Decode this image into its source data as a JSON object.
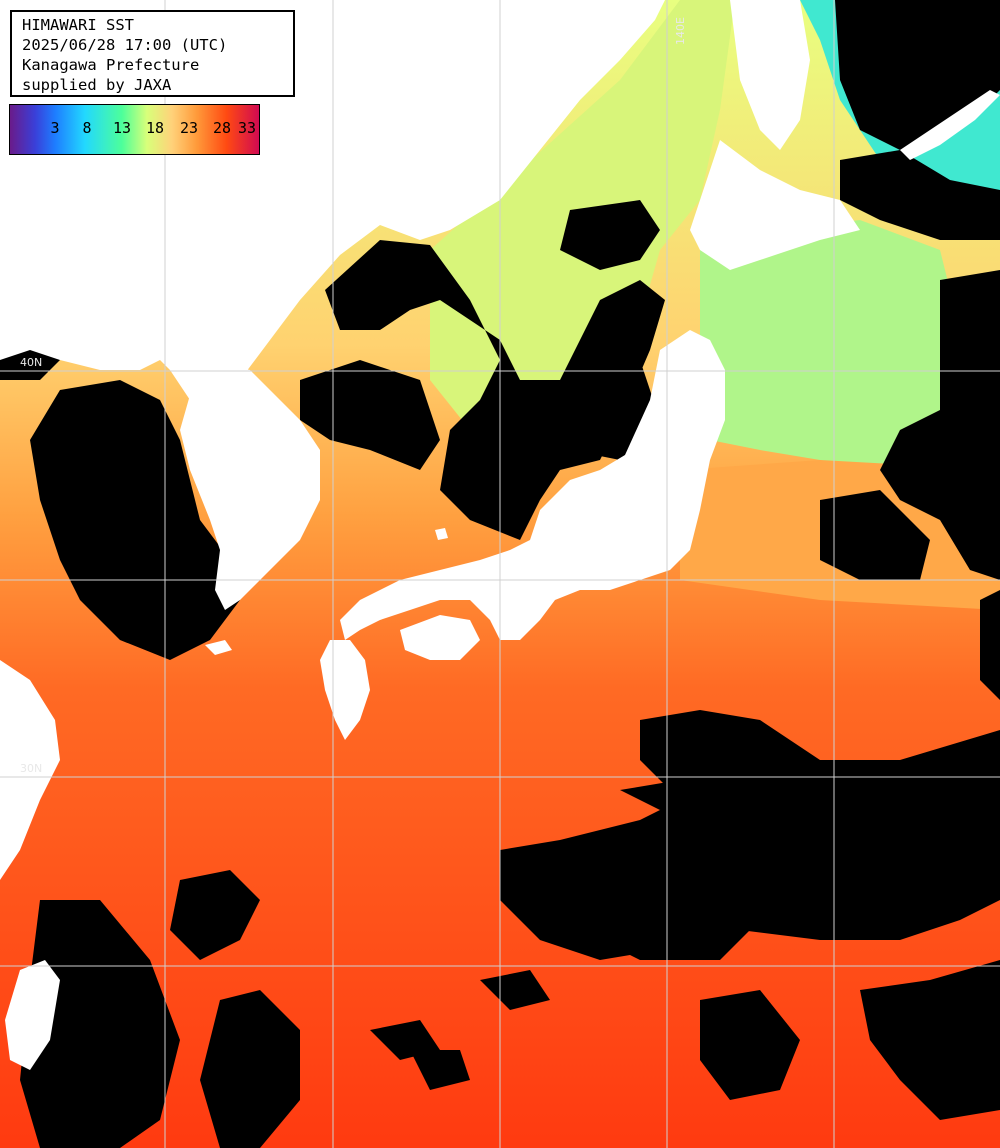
{
  "header": {
    "title": "HIMAWARI SST",
    "datetime": "2025/06/28 17:00 (UTC)",
    "region": "Kanagawa Prefecture",
    "credit": "supplied by JAXA"
  },
  "legend": {
    "ticks": [
      "3",
      "8",
      "13",
      "18",
      "23",
      "28",
      "33"
    ]
  },
  "grid": {
    "lat_labels": [
      "40N",
      "30N"
    ],
    "lon_labels": [
      "140E"
    ]
  },
  "colors": {
    "cloud": "#000000",
    "land": "#ffffff",
    "grid": "#d0d0d0",
    "cold": "#30e0e8",
    "cool": "#a0ff80",
    "mild": "#f0ff80",
    "warm": "#ffb050",
    "hot": "#ff7a28",
    "hottest": "#ff3010"
  }
}
